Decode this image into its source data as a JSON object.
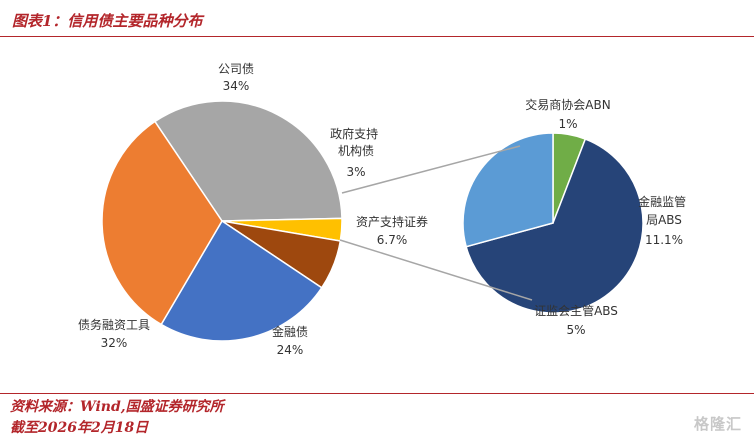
{
  "header": {
    "title": "图表1：信用债主要品种分布"
  },
  "footer": {
    "source": "资料来源：Wind,国盛证券研究所",
    "date": "截至2026年2月18日"
  },
  "watermark": "格隆汇",
  "chart_data": [
    {
      "type": "pie",
      "categories": [
        "公司债",
        "政府支持机构债",
        "资产支持证券",
        "金融债",
        "债务融资工具"
      ],
      "values": [
        34,
        3,
        6.7,
        24,
        32
      ],
      "labels": [
        "34%",
        "3%",
        "6.7%",
        "24%",
        "32%"
      ],
      "colors": [
        "#a6a6a6",
        "#ffc000",
        "#9e480e",
        "#4472c4",
        "#ed7d31"
      ]
    },
    {
      "type": "pie",
      "categories": [
        "交易商协会ABN",
        "金融监管局ABS",
        "证监会主管ABS"
      ],
      "values": [
        1,
        11.1,
        5
      ],
      "labels": [
        "1%",
        "11.1%",
        "5%"
      ],
      "colors": [
        "#70ad47",
        "#264478",
        "#5b9bd5"
      ]
    }
  ]
}
